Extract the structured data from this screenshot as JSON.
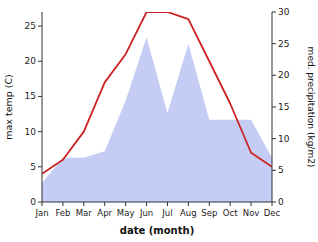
{
  "chart_data": {
    "type": "line",
    "x_label": "date (month)",
    "y_label": "max temp (C)",
    "y2_label": "med. precipitation (kg/m2)",
    "categories": [
      "Jan",
      "Feb",
      "Mar",
      "Apr",
      "May",
      "Jun",
      "Jul",
      "Aug",
      "Sep",
      "Oct",
      "Nov",
      "Dec"
    ],
    "series": [
      {
        "type": "area",
        "axis": "y2",
        "color": "#c5cdf5",
        "values": [
          3,
          7,
          7,
          8,
          16,
          26,
          14,
          25,
          13,
          13,
          13,
          7
        ]
      },
      {
        "type": "line",
        "color": "#cc2222",
        "values": [
          4,
          6,
          10,
          17,
          21,
          27,
          27,
          26,
          20,
          14,
          7,
          5
        ]
      }
    ],
    "ylim": [
      0,
      27
    ],
    "yticks": [
      0,
      5,
      10,
      15,
      20,
      25
    ],
    "y2lim": [
      0,
      30
    ],
    "y2ticks": [
      0,
      5,
      10,
      15,
      20,
      25,
      30
    ],
    "grid": false
  }
}
